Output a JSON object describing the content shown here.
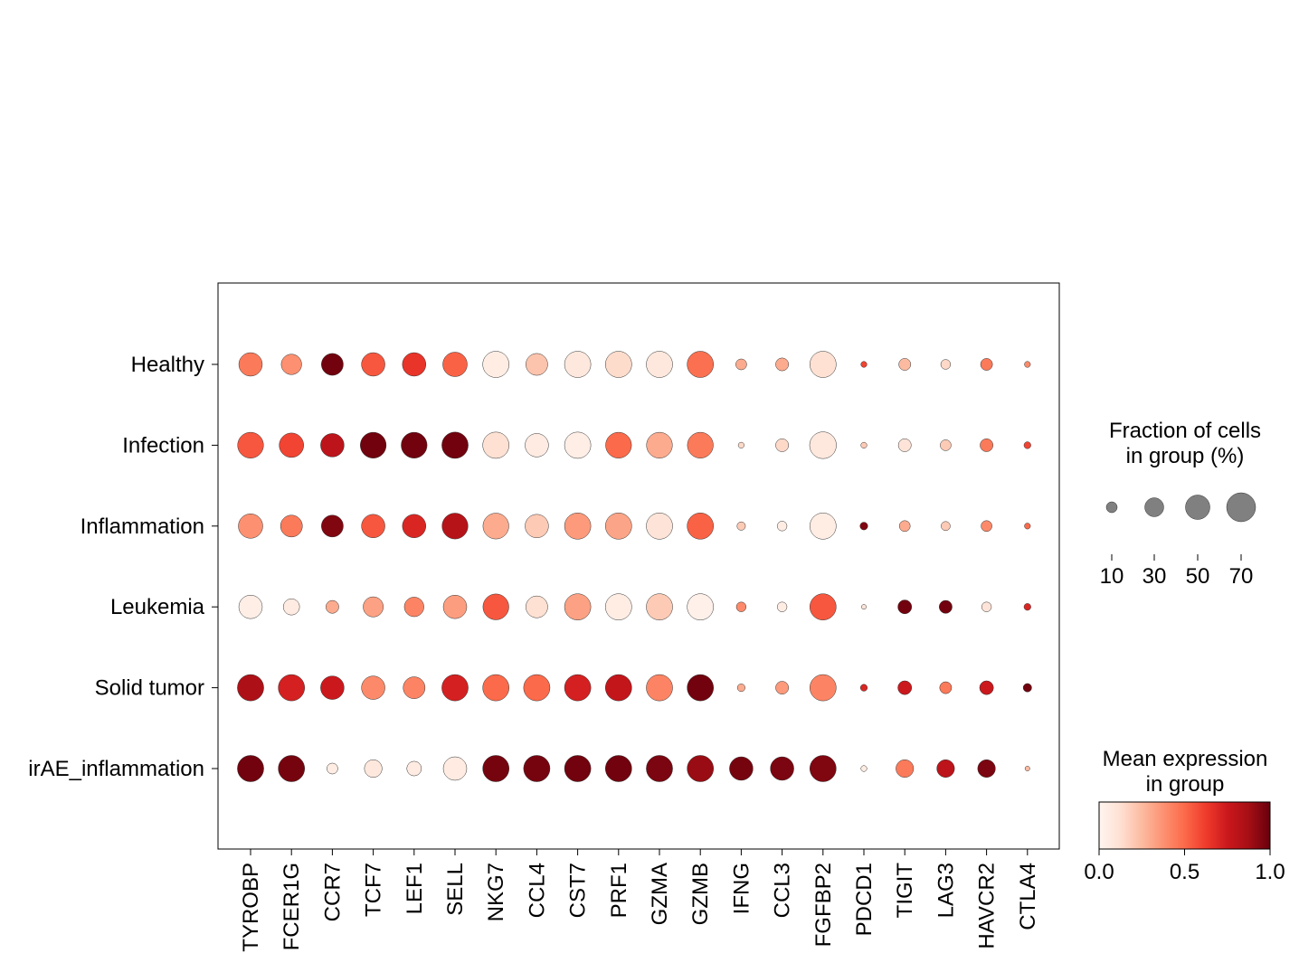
{
  "chart_data": {
    "type": "dotplot",
    "groups": [
      "Healthy",
      "Infection",
      "Inflammation",
      "Leukemia",
      "Solid tumor",
      "irAE_inflammation"
    ],
    "genes": [
      "TYROBP",
      "FCER1G",
      "CCR7",
      "TCF7",
      "LEF1",
      "SELL",
      "NKG7",
      "CCL4",
      "CST7",
      "PRF1",
      "GZMA",
      "GZMB",
      "IFNG",
      "CCL3",
      "FGFBP2",
      "PDCD1",
      "TIGIT",
      "LAG3",
      "HAVCR2",
      "CTLA4"
    ],
    "fraction_pct": [
      [
        46,
        35,
        40,
        46,
        46,
        50,
        58,
        40,
        58,
        58,
        58,
        58,
        10,
        14,
        58,
        3,
        12,
        8,
        12,
        3
      ],
      [
        56,
        50,
        46,
        56,
        56,
        58,
        58,
        46,
        58,
        56,
        56,
        56,
        3,
        14,
        60,
        3,
        14,
        10,
        14,
        4
      ],
      [
        50,
        40,
        40,
        46,
        46,
        56,
        56,
        46,
        58,
        58,
        58,
        58,
        6,
        8,
        58,
        5,
        10,
        7,
        10,
        3
      ],
      [
        46,
        22,
        14,
        34,
        32,
        46,
        56,
        40,
        58,
        58,
        58,
        58,
        8,
        8,
        58,
        2,
        16,
        14,
        8,
        4
      ],
      [
        58,
        58,
        46,
        46,
        40,
        58,
        58,
        58,
        58,
        58,
        58,
        58,
        5,
        14,
        58,
        4,
        16,
        12,
        16,
        6
      ],
      [
        58,
        58,
        10,
        26,
        18,
        46,
        58,
        58,
        58,
        58,
        58,
        58,
        46,
        46,
        58,
        3,
        26,
        26,
        26,
        2
      ]
    ],
    "mean_expression": [
      [
        0.45,
        0.38,
        0.98,
        0.55,
        0.65,
        0.52,
        0.05,
        0.22,
        0.08,
        0.14,
        0.08,
        0.48,
        0.3,
        0.3,
        0.12,
        0.6,
        0.25,
        0.15,
        0.45,
        0.4
      ],
      [
        0.55,
        0.6,
        0.8,
        0.98,
        0.98,
        0.98,
        0.12,
        0.06,
        0.04,
        0.5,
        0.3,
        0.45,
        0.15,
        0.15,
        0.08,
        0.2,
        0.1,
        0.2,
        0.45,
        0.6
      ],
      [
        0.38,
        0.45,
        0.95,
        0.55,
        0.7,
        0.82,
        0.3,
        0.2,
        0.35,
        0.32,
        0.1,
        0.52,
        0.2,
        0.05,
        0.05,
        0.95,
        0.3,
        0.2,
        0.4,
        0.5
      ],
      [
        0.04,
        0.06,
        0.3,
        0.33,
        0.42,
        0.34,
        0.55,
        0.12,
        0.33,
        0.05,
        0.2,
        0.03,
        0.4,
        0.05,
        0.55,
        0.1,
        0.98,
        0.98,
        0.1,
        0.7
      ],
      [
        0.85,
        0.72,
        0.75,
        0.4,
        0.42,
        0.72,
        0.5,
        0.5,
        0.72,
        0.78,
        0.42,
        0.98,
        0.3,
        0.35,
        0.42,
        0.7,
        0.75,
        0.45,
        0.75,
        0.98
      ],
      [
        0.98,
        0.97,
        0.05,
        0.08,
        0.06,
        0.06,
        0.97,
        0.97,
        0.98,
        0.98,
        0.96,
        0.9,
        0.97,
        0.96,
        0.95,
        0.05,
        0.45,
        0.8,
        0.96,
        0.25
      ]
    ],
    "size_legend": {
      "title_line1": "Fraction of cells",
      "title_line2": "in group (%)",
      "values": [
        10,
        30,
        50,
        70
      ],
      "labels": [
        "10",
        "30",
        "50",
        "70"
      ]
    },
    "color_legend": {
      "title_line1": "Mean expression",
      "title_line2": "in group",
      "range": [
        0,
        1
      ],
      "tick_labels": [
        "0.0",
        "0.5",
        "1.0"
      ],
      "colormap": "Reds",
      "stops": [
        "#fff5f0",
        "#fee0d2",
        "#fcbba1",
        "#fc9272",
        "#fb6a4a",
        "#ef3b2c",
        "#cb181d",
        "#a50f15",
        "#67000d"
      ]
    }
  }
}
